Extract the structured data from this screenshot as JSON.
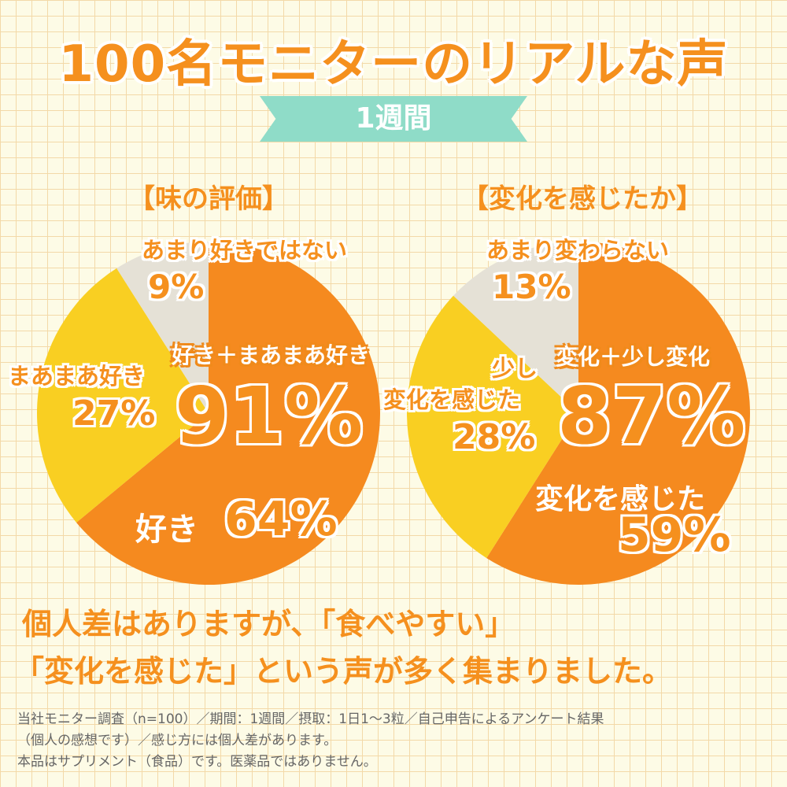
{
  "title": "100名モニターのリアルな声",
  "period_badge": "1週間",
  "colors": {
    "orange": "#f58a1f",
    "yellow": "#f9cf22",
    "gray": "#e5e1d6",
    "teal": "#8fdcc8"
  },
  "chart_data": [
    {
      "type": "pie",
      "title": "【味の評価】",
      "slices": [
        {
          "label": "好き",
          "value": 64,
          "display": "64%",
          "color": "#f58a1f"
        },
        {
          "label": "まあまあ好き",
          "value": 27,
          "display": "27%",
          "color": "#f9cf22"
        },
        {
          "label": "あまり好きではない",
          "value": 9,
          "display": "9%",
          "color": "#e5e1d6"
        }
      ],
      "annotation": {
        "label": "好き＋まあまあ好き",
        "value": "91%"
      }
    },
    {
      "type": "pie",
      "title": "【変化を感じたか】",
      "slices": [
        {
          "label": "変化を感じた",
          "value": 59,
          "display": "59%",
          "color": "#f58a1f"
        },
        {
          "label": "少し変化を感じた",
          "label_lines": [
            "少し",
            "変化を感じた"
          ],
          "value": 28,
          "display": "28%",
          "color": "#f9cf22"
        },
        {
          "label": "あまり変わらない",
          "value": 13,
          "display": "13%",
          "color": "#e5e1d6"
        }
      ],
      "annotation": {
        "label": "変化＋少し変化",
        "value": "87%"
      }
    }
  ],
  "message": [
    "個人差はありますが、「食べやすい」",
    "「変化を感じた」という声が多く集まりました。"
  ],
  "notes": [
    "当社モニター調査（n=100）／期間：1週間／摂取：1日1〜3粒／自己申告によるアンケート結果",
    "（個人の感想です）／感じ方には個人差があります。",
    "本品はサプリメント（食品）です。医薬品ではありません。"
  ]
}
